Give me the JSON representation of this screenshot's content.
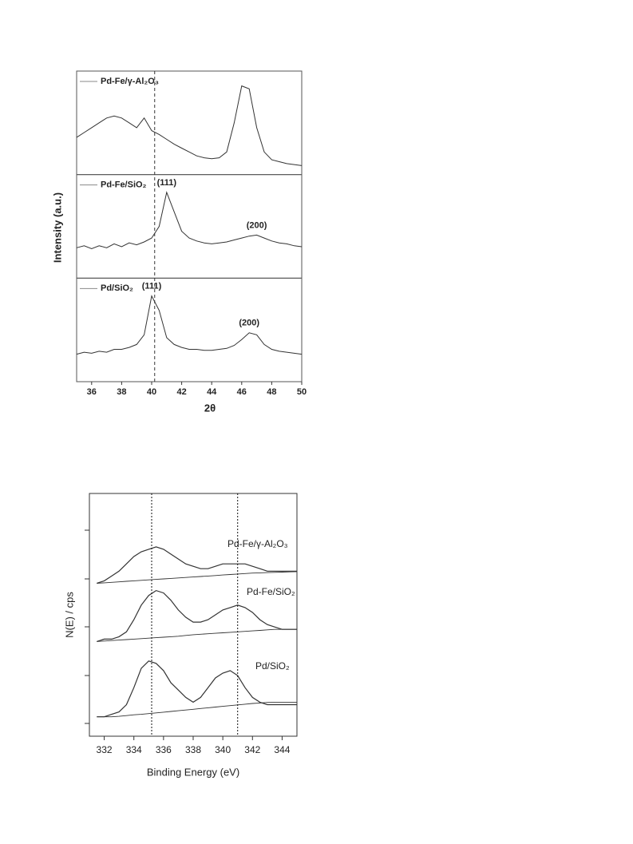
{
  "chart_data": [
    {
      "type": "line",
      "y_label": "Intensity (a.u.)",
      "x_label": "2θ",
      "xlim": [
        35,
        50
      ],
      "xticks": [
        36,
        38,
        40,
        42,
        44,
        46,
        48,
        50
      ],
      "reference_x": 40.2,
      "color": "#333333",
      "x": [
        35,
        35.5,
        36,
        36.5,
        37,
        37.5,
        38,
        38.5,
        39,
        39.5,
        40,
        40.5,
        41,
        41.5,
        42,
        42.5,
        43,
        43.5,
        44,
        44.5,
        45,
        45.5,
        46,
        46.5,
        47,
        47.5,
        48,
        48.5,
        49,
        49.5,
        50
      ],
      "panels": [
        {
          "name": "Pd-Fe/γ-Al₂O₃",
          "ylim": [
            0,
            100
          ],
          "annotations": [],
          "values": [
            35,
            40,
            45,
            50,
            55,
            57,
            55,
            50,
            45,
            55,
            42,
            38,
            33,
            28,
            24,
            20,
            16,
            14,
            13,
            14,
            20,
            50,
            88,
            85,
            45,
            20,
            12,
            10,
            8,
            7,
            6
          ]
        },
        {
          "name": "Pd-Fe/SiO₂",
          "ylim": [
            0,
            100
          ],
          "annotations": [
            {
              "text": "(111)",
              "x": 41
            },
            {
              "text": "(200)",
              "x": 47
            }
          ],
          "values": [
            28,
            30,
            27,
            30,
            28,
            32,
            29,
            33,
            31,
            34,
            38,
            50,
            85,
            65,
            45,
            38,
            35,
            33,
            32,
            33,
            34,
            36,
            38,
            40,
            41,
            38,
            35,
            33,
            32,
            30,
            29
          ]
        },
        {
          "name": "Pd/SiO₂",
          "ylim": [
            0,
            100
          ],
          "annotations": [
            {
              "text": "(111)",
              "x": 40
            },
            {
              "text": "(200)",
              "x": 46.5
            }
          ],
          "values": [
            25,
            27,
            26,
            28,
            27,
            30,
            30,
            32,
            35,
            45,
            85,
            70,
            42,
            35,
            32,
            30,
            30,
            29,
            29,
            30,
            31,
            34,
            40,
            47,
            45,
            35,
            30,
            28,
            27,
            26,
            25
          ]
        }
      ]
    },
    {
      "type": "line",
      "y_label": "N(E) / cps",
      "x_label": "Binding Energy (eV)",
      "xlim": [
        331,
        345
      ],
      "xticks": [
        332,
        334,
        336,
        338,
        340,
        342,
        344
      ],
      "ylim": [
        0,
        100
      ],
      "reference_lines": [
        335.2,
        341.0
      ],
      "color": "#333333",
      "x": [
        331.5,
        332,
        332.5,
        333,
        333.5,
        334,
        334.5,
        335,
        335.5,
        336,
        336.5,
        337,
        337.5,
        338,
        338.5,
        339,
        339.5,
        340,
        340.5,
        341,
        341.5,
        342,
        342.5,
        343,
        343.5,
        344,
        344.5,
        345
      ],
      "series": [
        {
          "name": "Pd-Fe/γ-Al₂O₃",
          "values": [
            63,
            64,
            66,
            68,
            71,
            74,
            76,
            77,
            78,
            77,
            75,
            73,
            71,
            70,
            69,
            69,
            70,
            71,
            71,
            71,
            71,
            70,
            69,
            68,
            68,
            68,
            68,
            68
          ],
          "background": [
            63,
            63.2,
            63.4,
            63.6,
            63.8,
            64,
            64.2,
            64.4,
            64.6,
            64.8,
            65,
            65.2,
            65.4,
            65.6,
            65.8,
            66,
            66.2,
            66.4,
            66.6,
            66.8,
            67,
            67.2,
            67.3,
            67.4,
            67.5,
            67.6,
            67.7,
            67.8
          ]
        },
        {
          "name": "Pd-Fe/SiO₂",
          "values": [
            39,
            40,
            40,
            41,
            43,
            48,
            54,
            58,
            60,
            59,
            56,
            52,
            49,
            47,
            47,
            48,
            50,
            52,
            53,
            54,
            53,
            51,
            48,
            46,
            45,
            44,
            44,
            44
          ],
          "background": [
            39,
            39.2,
            39.4,
            39.6,
            39.8,
            40,
            40.2,
            40.4,
            40.6,
            40.8,
            41,
            41.2,
            41.5,
            41.8,
            42,
            42.2,
            42.4,
            42.6,
            42.8,
            43,
            43.2,
            43.4,
            43.6,
            43.8,
            44,
            44,
            44,
            44
          ]
        },
        {
          "name": "Pd/SiO₂",
          "values": [
            8,
            8,
            9,
            10,
            13,
            20,
            28,
            31,
            30,
            27,
            22,
            19,
            16,
            14,
            16,
            20,
            24,
            26,
            27,
            25,
            20,
            16,
            14,
            13,
            13,
            13,
            13,
            13
          ],
          "background": [
            8,
            8,
            8,
            8.2,
            8.5,
            8.8,
            9,
            9.3,
            9.6,
            9.9,
            10.2,
            10.5,
            10.8,
            11.1,
            11.4,
            11.7,
            12,
            12.3,
            12.6,
            12.9,
            13.2,
            13.5,
            13.7,
            13.9,
            14,
            14,
            14,
            14
          ]
        }
      ]
    }
  ]
}
